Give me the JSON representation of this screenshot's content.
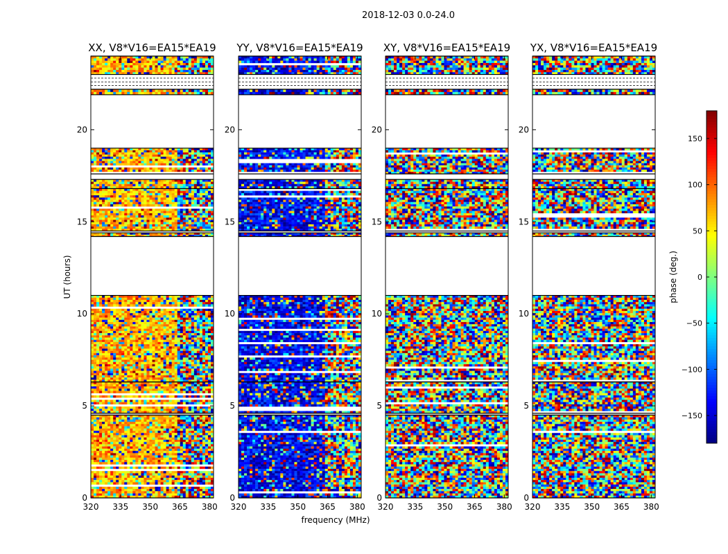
{
  "figure": {
    "suptitle": "2018-12-03 0.0-24.0",
    "ylabel": "UT (hours)",
    "xlabel": "frequency (MHz)"
  },
  "colorbar": {
    "label": "phase (deg.)",
    "range": [
      -180,
      180
    ],
    "ticks": [
      150,
      100,
      50,
      0,
      -50,
      -100,
      -150
    ],
    "tick_labels": [
      "150",
      "100",
      "50",
      "0",
      "−50",
      "−100",
      "−150"
    ],
    "colormap": [
      "#00007f",
      "#0000ff",
      "#007fff",
      "#00ffff",
      "#7fff7f",
      "#ffff00",
      "#ff7f00",
      "#ff0000",
      "#7f0000"
    ]
  },
  "chart_data": [
    {
      "type": "heatmap",
      "title": "XX, V8*V16=EA15*EA19",
      "xlim": [
        320,
        382
      ],
      "ylim": [
        0,
        24
      ],
      "xticks": [
        320,
        335,
        350,
        365,
        380
      ],
      "yticks": [
        0,
        5,
        10,
        15,
        20
      ],
      "value_range": [
        -180,
        180
      ],
      "data_blocks_ut_hours": [
        [
          0,
          4.5
        ],
        [
          4.6,
          6.3
        ],
        [
          6.3,
          11.0
        ],
        [
          14.2,
          14.4
        ],
        [
          14.5,
          16.8
        ],
        [
          16.8,
          17.3
        ],
        [
          17.6,
          19.0
        ],
        [
          21.9,
          22.2
        ],
        [
          23.0,
          24.0
        ]
      ],
      "dominant_phase_deg": 70
    },
    {
      "type": "heatmap",
      "title": "YY, V8*V16=EA15*EA19",
      "xlim": [
        320,
        382
      ],
      "ylim": [
        0,
        24
      ],
      "xticks": [
        320,
        335,
        350,
        365,
        380
      ],
      "yticks": [
        0,
        5,
        10,
        15,
        20
      ],
      "value_range": [
        -180,
        180
      ],
      "data_blocks_ut_hours": [
        [
          0,
          4.5
        ],
        [
          4.6,
          6.3
        ],
        [
          6.3,
          11.0
        ],
        [
          14.2,
          14.4
        ],
        [
          14.5,
          16.8
        ],
        [
          16.8,
          17.3
        ],
        [
          17.6,
          19.0
        ],
        [
          21.9,
          22.2
        ],
        [
          23.0,
          24.0
        ]
      ],
      "dominant_phase_deg": -140
    },
    {
      "type": "heatmap",
      "title": "XY, V8*V16=EA15*EA19",
      "xlim": [
        320,
        382
      ],
      "ylim": [
        0,
        24
      ],
      "xticks": [
        320,
        335,
        350,
        365,
        380
      ],
      "yticks": [
        0,
        5,
        10,
        15,
        20
      ],
      "value_range": [
        -180,
        180
      ],
      "data_blocks_ut_hours": [
        [
          0,
          4.5
        ],
        [
          4.6,
          6.3
        ],
        [
          6.3,
          11.0
        ],
        [
          14.2,
          14.4
        ],
        [
          14.5,
          16.8
        ],
        [
          16.8,
          17.3
        ],
        [
          17.6,
          19.0
        ],
        [
          21.9,
          22.2
        ],
        [
          23.0,
          24.0
        ]
      ],
      "dominant_phase_deg": null
    },
    {
      "type": "heatmap",
      "title": "YX, V8*V16=EA15*EA19",
      "xlim": [
        320,
        382
      ],
      "ylim": [
        0,
        24
      ],
      "xticks": [
        320,
        335,
        350,
        365,
        380
      ],
      "yticks": [
        0,
        5,
        10,
        15,
        20
      ],
      "value_range": [
        -180,
        180
      ],
      "data_blocks_ut_hours": [
        [
          0,
          4.5
        ],
        [
          4.6,
          6.3
        ],
        [
          6.3,
          11.0
        ],
        [
          14.2,
          14.4
        ],
        [
          14.5,
          16.8
        ],
        [
          16.8,
          17.3
        ],
        [
          17.6,
          19.0
        ],
        [
          21.9,
          22.2
        ],
        [
          23.0,
          24.0
        ]
      ],
      "dominant_phase_deg": null
    }
  ]
}
